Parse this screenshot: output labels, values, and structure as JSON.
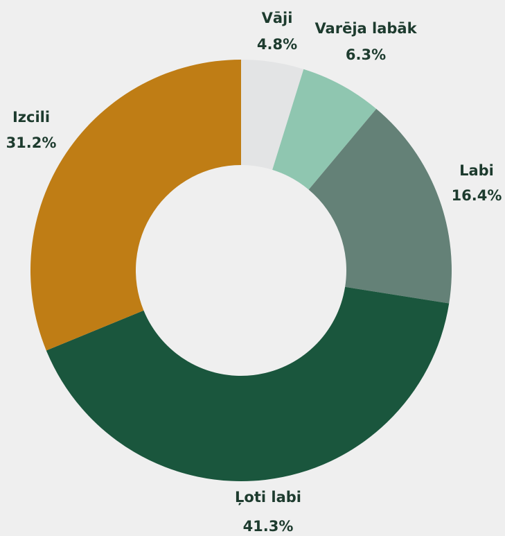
{
  "chart_data": {
    "type": "donut",
    "categories": [
      "Vāji",
      "Varēja labāk",
      "Labi",
      "Ļoti labi",
      "Izcili"
    ],
    "series": [
      {
        "values": [
          4.8,
          6.3,
          16.4,
          41.3,
          31.2
        ],
        "value_labels": [
          "4.8%",
          "6.3%",
          "16.4%",
          "41.3%",
          "31.2%"
        ],
        "colors": [
          "#e3e4e5",
          "#8fc6b0",
          "#648177",
          "#1a563d",
          "#bf7d15"
        ]
      }
    ]
  }
}
